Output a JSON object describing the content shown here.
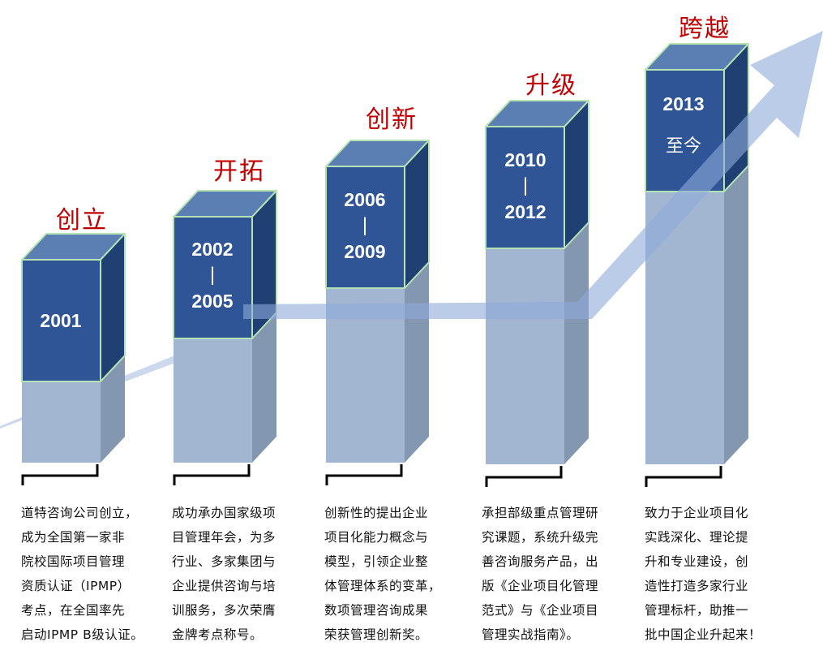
{
  "stages": [
    {
      "title": "创立",
      "years": [
        "2001"
      ],
      "description": "道特咨询公司创立，\n成为全国第一家非\n院校国际项目管理\n资质认证（IPMP）\n考点，在全国率先\n启动IPMP B级认证。"
    },
    {
      "title": "开拓",
      "years": [
        "2002",
        "|",
        "2005"
      ],
      "description": "成功承办国家级项\n目管理年会，为多\n行业、多家集团与\n企业提供咨询与培\n训服务，多次荣膺\n金牌考点称号。"
    },
    {
      "title": "创新",
      "years": [
        "2006",
        "|",
        "2009"
      ],
      "description": "创新性的提出企业\n项目化能力概念与\n模型，引领企业整\n体管理体系的变革，\n数项管理咨询成果\n荣获管理创新奖。"
    },
    {
      "title": "升级",
      "years": [
        "2010",
        "|",
        "2012"
      ],
      "description": "承担部级重点管理研\n究课题，系统升级完\n善咨询服务产品，出\n版《企业项目化管理\n范式》与《企业项目\n管理实战指南》。"
    },
    {
      "title": "跨越",
      "years": [
        "2013",
        "至今"
      ],
      "description": "致力于企业项目化\n实践深化、理论提\n升和专业建设，创\n造性打造多家行业\n管理标杆，助推一\n批中国企业升起来！"
    }
  ],
  "colors": {
    "title_red": "#c00000",
    "cube_front": "#2f5597",
    "cube_top": "#5b7fb3",
    "cube_side": "#203f73",
    "pillar_front": "#a2b6d2",
    "pillar_side": "#8497b0",
    "arrow": "#8eaadb",
    "cube_outline": "#b4e3b4"
  }
}
